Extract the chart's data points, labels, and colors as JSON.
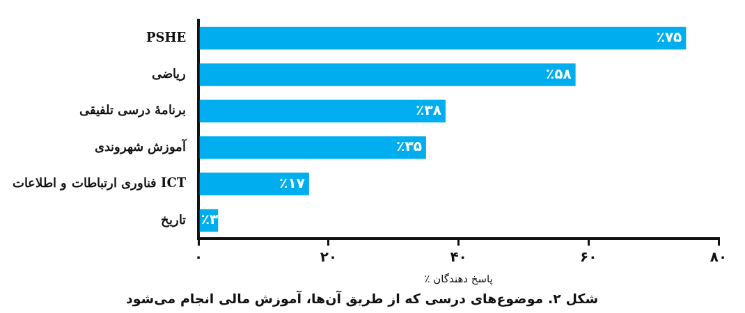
{
  "chart_data": {
    "type": "bar",
    "orientation": "horizontal",
    "title": "شکل ۲. موضوع‌های درسی که از طریق آن‌ها، آموزش مالی انجام می‌شود",
    "xlabel": "٪ پاسخ دهندگان",
    "categories": [
      "PSHE",
      "ریاضی",
      "برنامهٔ درسی تلفیقی",
      "آموزش شهروندی",
      "فناوری ارتباطات و اطلاعات ICT",
      "تاریخ"
    ],
    "values": [
      75,
      58,
      38,
      35,
      17,
      3
    ],
    "value_labels": [
      "٪۷۵",
      "٪۵۸",
      "٪۳۸",
      "٪۳۵",
      "٪۱۷",
      "٪۳"
    ],
    "color": "#00aeef",
    "xlim": [
      0,
      80
    ],
    "xticks": [
      {
        "value": 0,
        "label": "۰"
      },
      {
        "value": 20,
        "label": "۲۰"
      },
      {
        "value": 40,
        "label": "۴۰"
      },
      {
        "value": 60,
        "label": "۶۰"
      },
      {
        "value": 80,
        "label": "۸۰"
      }
    ],
    "grid": false,
    "legend": false
  }
}
